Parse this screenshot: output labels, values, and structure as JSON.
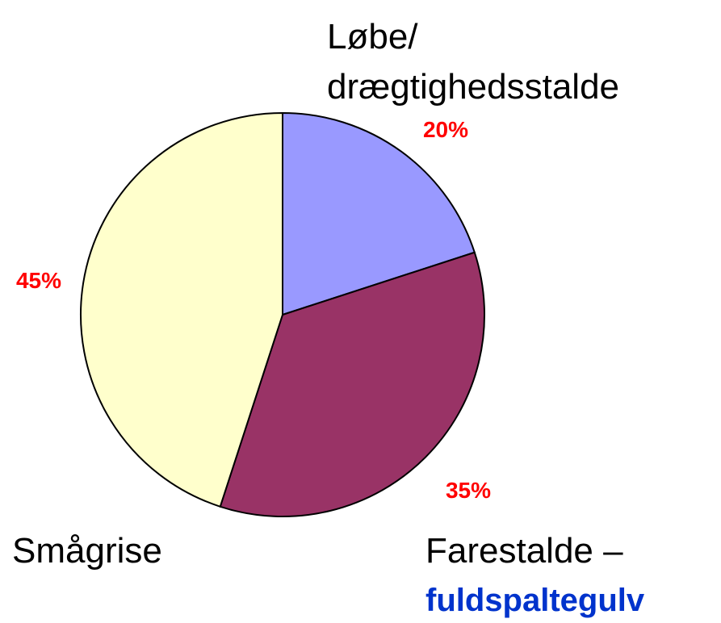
{
  "chart_data": {
    "type": "pie",
    "categories": [
      [
        "Løbe/",
        "drægtighedsstalde"
      ],
      [
        "Farestalde –",
        "fuldspaltegulv"
      ],
      [
        "Smågrise"
      ]
    ],
    "values": [
      20,
      35,
      45
    ],
    "value_labels": [
      "20%",
      "35%",
      "45%"
    ],
    "colors": [
      "#9999ff",
      "#993366",
      "#ffffcc"
    ]
  }
}
